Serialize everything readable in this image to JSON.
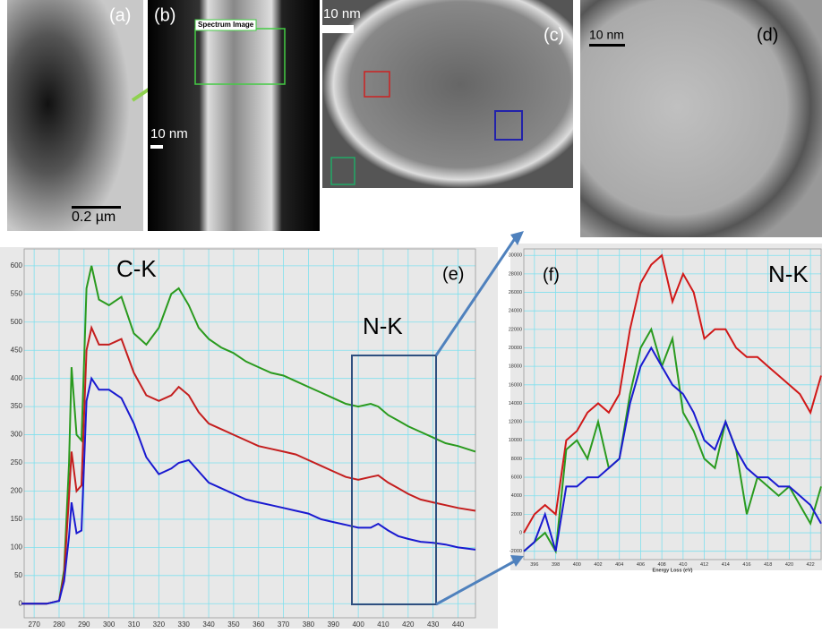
{
  "panels": [
    {
      "label": "(a)",
      "scale_bar": "0.2 µm"
    },
    {
      "label": "(b)",
      "scale_bar": "10 nm",
      "box_label": "Spectrum Image"
    },
    {
      "label": "(c)",
      "scale_bar": "10 nm"
    },
    {
      "label": "(d)",
      "scale_bar": "10 nm"
    }
  ],
  "chart_data": [
    {
      "type": "line",
      "annotations": [
        "C-K",
        "N-K",
        "(e)"
      ],
      "x": [
        265,
        270,
        275,
        280,
        282,
        284,
        285,
        287,
        289,
        291,
        293,
        296,
        300,
        305,
        310,
        315,
        320,
        325,
        328,
        332,
        336,
        340,
        345,
        350,
        355,
        360,
        365,
        370,
        375,
        380,
        385,
        390,
        395,
        400,
        405,
        408,
        412,
        416,
        420,
        425,
        430,
        435,
        440,
        447
      ],
      "series": [
        {
          "color": "#2a9a1e",
          "values": [
            0,
            0,
            0,
            5,
            60,
            250,
            420,
            300,
            290,
            560,
            600,
            540,
            530,
            545,
            480,
            460,
            490,
            550,
            560,
            530,
            490,
            470,
            455,
            445,
            430,
            420,
            410,
            405,
            395,
            385,
            375,
            365,
            355,
            350,
            355,
            350,
            335,
            325,
            315,
            305,
            295,
            285,
            280,
            270
          ]
        },
        {
          "color": "#c41e1e",
          "values": [
            0,
            0,
            0,
            5,
            50,
            190,
            270,
            200,
            210,
            450,
            490,
            460,
            460,
            470,
            410,
            370,
            360,
            370,
            385,
            370,
            340,
            320,
            310,
            300,
            290,
            280,
            275,
            270,
            265,
            255,
            245,
            235,
            225,
            220,
            225,
            228,
            215,
            205,
            195,
            185,
            180,
            175,
            170,
            165
          ]
        },
        {
          "color": "#1a1ad0",
          "values": [
            0,
            0,
            0,
            5,
            40,
            120,
            180,
            125,
            130,
            360,
            400,
            380,
            380,
            365,
            320,
            260,
            230,
            240,
            250,
            255,
            235,
            215,
            205,
            195,
            185,
            180,
            175,
            170,
            165,
            160,
            150,
            145,
            140,
            135,
            135,
            142,
            130,
            120,
            115,
            110,
            108,
            105,
            100,
            96
          ]
        }
      ],
      "xlim": [
        266,
        447
      ],
      "ylim": [
        -25,
        630
      ],
      "xticks": [
        270,
        280,
        290,
        300,
        310,
        320,
        330,
        340,
        350,
        360,
        370,
        380,
        390,
        400,
        410,
        420,
        430,
        440
      ],
      "yticks": [
        0,
        50,
        100,
        150,
        200,
        250,
        300,
        350,
        400,
        450,
        500,
        550,
        600
      ],
      "grid": true
    },
    {
      "type": "line",
      "annotations": [
        "(f)",
        "N-K"
      ],
      "x_label": "Energy Loss (eV)",
      "x": [
        395,
        396,
        397,
        398,
        399,
        400,
        401,
        402,
        403,
        404,
        405,
        406,
        407,
        408,
        409,
        410,
        411,
        412,
        413,
        414,
        415,
        416,
        417,
        418,
        419,
        420,
        421,
        422,
        423
      ],
      "series": [
        {
          "color": "#d01818",
          "values": [
            0,
            2000,
            3000,
            2000,
            10000,
            11000,
            13000,
            14000,
            13000,
            15000,
            22000,
            27000,
            29000,
            30000,
            25000,
            28000,
            26000,
            21000,
            22000,
            22000,
            20000,
            19000,
            19000,
            18000,
            17000,
            16000,
            15000,
            13000,
            17000
          ]
        },
        {
          "color": "#2a9a1e",
          "values": [
            -2000,
            -1000,
            0,
            -2000,
            9000,
            10000,
            8000,
            12000,
            7000,
            8000,
            15000,
            20000,
            22000,
            18000,
            21000,
            13000,
            11000,
            8000,
            7000,
            12000,
            9000,
            2000,
            6000,
            5000,
            4000,
            5000,
            3000,
            1000,
            5000
          ]
        },
        {
          "color": "#1a1ad0",
          "values": [
            -2000,
            -1000,
            2000,
            -2000,
            5000,
            5000,
            6000,
            6000,
            7000,
            8000,
            14000,
            18000,
            20000,
            18000,
            16000,
            15000,
            13000,
            10000,
            9000,
            12000,
            9000,
            7000,
            6000,
            6000,
            5000,
            5000,
            4000,
            3000,
            1000
          ]
        }
      ],
      "xlim": [
        395,
        423
      ],
      "ylim": [
        -2900,
        30700
      ],
      "xticks": [
        396,
        398,
        400,
        402,
        404,
        406,
        408,
        410,
        412,
        414,
        416,
        418,
        420,
        422
      ],
      "yticks": [
        -2000,
        0,
        2000,
        4000,
        6000,
        8000,
        10000,
        12000,
        14000,
        16000,
        18000,
        20000,
        22000,
        24000,
        26000,
        28000,
        30000
      ],
      "grid": true
    }
  ]
}
